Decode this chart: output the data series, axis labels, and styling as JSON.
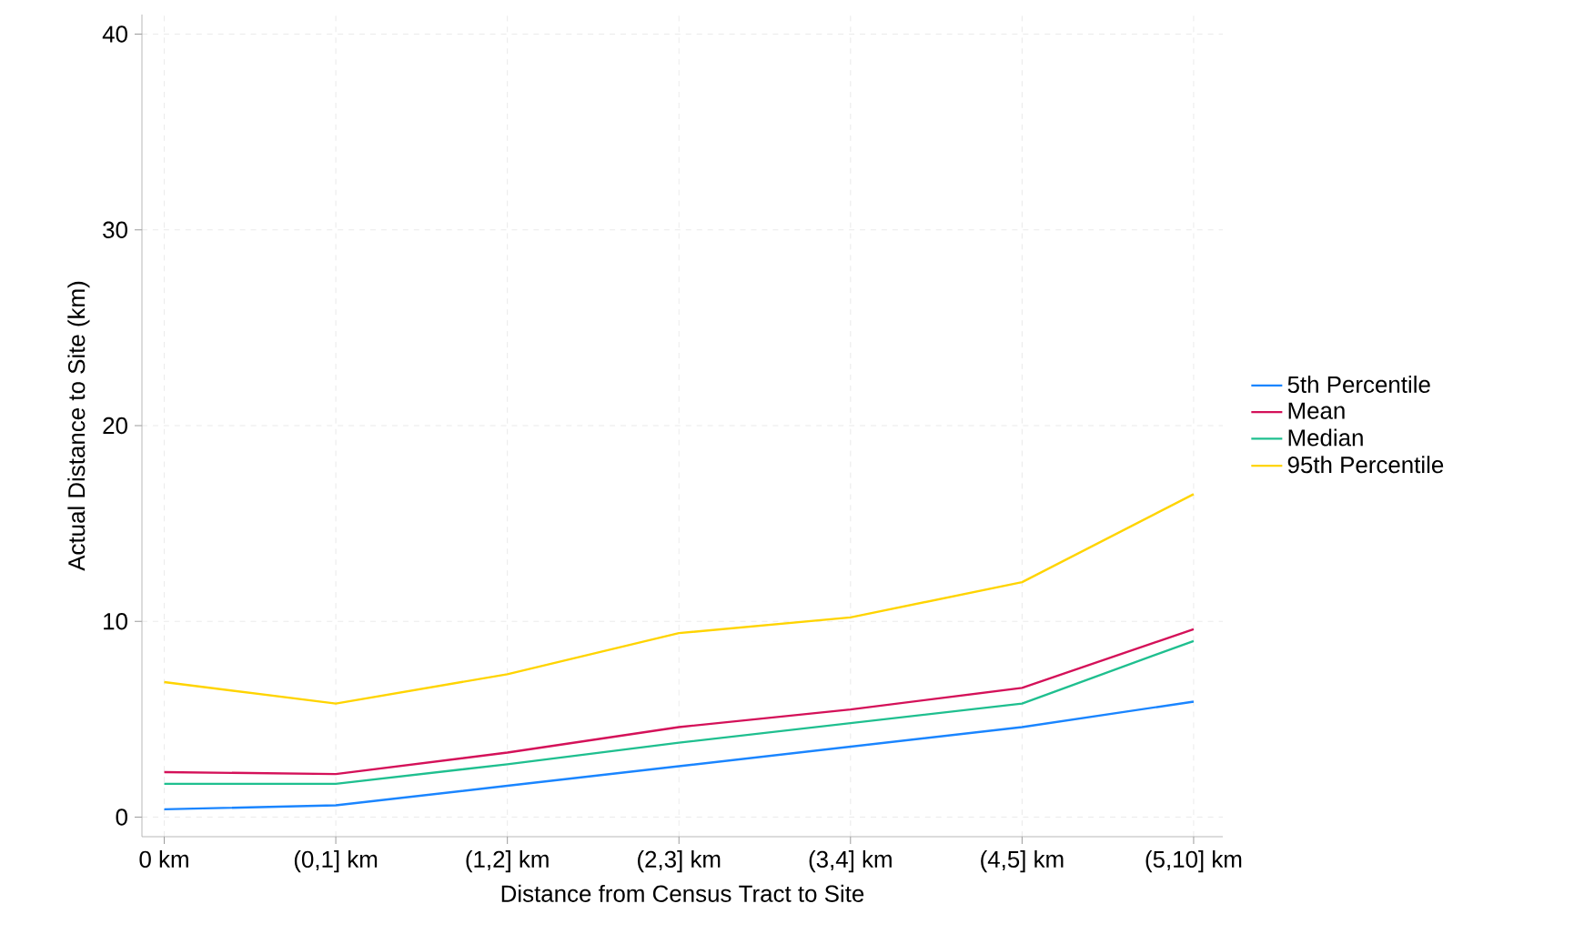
{
  "chart_data": {
    "type": "line",
    "xlabel": "Distance from Census Tract to Site",
    "ylabel": "Actual Distance to Site (km)",
    "categories": [
      "0 km",
      "(0,1] km",
      "(1,2] km",
      "(2,3] km",
      "(3,4] km",
      "(4,5] km",
      "(5,10] km"
    ],
    "series": [
      {
        "name": "5th Percentile",
        "color": "#1a85ff",
        "values": [
          0.4,
          0.6,
          1.6,
          2.6,
          3.6,
          4.6,
          5.9
        ]
      },
      {
        "name": "Mean",
        "color": "#d41159",
        "values": [
          2.3,
          2.2,
          3.3,
          4.6,
          5.5,
          6.6,
          9.6
        ]
      },
      {
        "name": "Median",
        "color": "#1fbf8f",
        "values": [
          1.7,
          1.7,
          2.7,
          3.8,
          4.8,
          5.8,
          9.0
        ]
      },
      {
        "name": "95th Percentile",
        "color": "#ffd400",
        "values": [
          6.9,
          5.8,
          7.3,
          9.4,
          10.2,
          12.0,
          16.5
        ]
      }
    ],
    "ylim": [
      -1,
      41
    ],
    "yticks": [
      0,
      10,
      20,
      30,
      40
    ],
    "grid": true,
    "legend": "right",
    "line_style": "solid"
  }
}
